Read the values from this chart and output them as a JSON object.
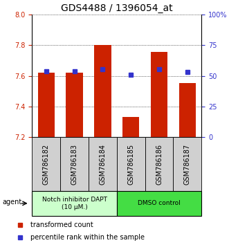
{
  "title": "GDS4488 / 1396054_at",
  "categories": [
    "GSM786182",
    "GSM786183",
    "GSM786184",
    "GSM786185",
    "GSM786186",
    "GSM786187"
  ],
  "bar_values": [
    7.622,
    7.622,
    7.8,
    7.33,
    7.755,
    7.553
  ],
  "blue_dot_values": [
    7.632,
    7.632,
    7.645,
    7.607,
    7.645,
    7.628
  ],
  "y_min": 7.2,
  "y_max": 8.0,
  "y_ticks_left": [
    7.2,
    7.4,
    7.6,
    7.8,
    8.0
  ],
  "y_ticks_right": [
    0,
    25,
    50,
    75,
    100
  ],
  "y_ticks_right_labels": [
    "0",
    "25",
    "50",
    "75",
    "100%"
  ],
  "bar_color": "#cc2200",
  "blue_dot_color": "#3333cc",
  "bar_width": 0.6,
  "group1_label": "Notch inhibitor DAPT\n(10 μM.)",
  "group2_label": "DMSO control",
  "group1_color": "#ccffcc",
  "group2_color": "#44dd44",
  "agent_label": "agent",
  "legend_red": "transformed count",
  "legend_blue": "percentile rank within the sample",
  "background_color": "#ffffff",
  "plot_bg_color": "#ffffff",
  "tick_label_color_left": "#cc2200",
  "tick_label_color_right": "#3333cc",
  "title_fontsize": 10,
  "axis_fontsize": 7,
  "legend_fontsize": 7
}
